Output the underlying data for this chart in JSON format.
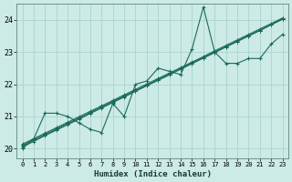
{
  "xlabel": "Humidex (Indice chaleur)",
  "bg_color": "#cceae6",
  "grid_color": "#aad4cf",
  "line_color": "#1a6b5a",
  "xlim": [
    -0.5,
    23.5
  ],
  "ylim": [
    19.7,
    24.5
  ],
  "yticks": [
    20,
    21,
    22,
    23,
    24
  ],
  "xticks": [
    0,
    1,
    2,
    3,
    4,
    5,
    6,
    7,
    8,
    9,
    10,
    11,
    12,
    13,
    14,
    15,
    16,
    17,
    18,
    19,
    20,
    21,
    22,
    23
  ],
  "zigzag": [
    20.0,
    20.3,
    21.1,
    21.1,
    21.0,
    20.8,
    20.6,
    20.5,
    21.4,
    21.0,
    22.0,
    22.1,
    22.5,
    22.4,
    22.3,
    23.1,
    24.4,
    23.0,
    22.65,
    22.65,
    22.8,
    22.8,
    23.25,
    23.55
  ],
  "linear_lines": [
    [
      20.05,
      20.22,
      20.4,
      20.57,
      20.74,
      20.91,
      21.09,
      21.26,
      21.43,
      21.6,
      21.78,
      21.95,
      22.12,
      22.29,
      22.47,
      22.64,
      22.81,
      22.98,
      23.16,
      23.33,
      23.5,
      23.67,
      23.85,
      24.02
    ],
    [
      20.08,
      20.25,
      20.42,
      20.59,
      20.76,
      20.93,
      21.1,
      21.27,
      21.45,
      21.62,
      21.79,
      21.96,
      22.13,
      22.3,
      22.47,
      22.65,
      22.82,
      22.99,
      23.16,
      23.33,
      23.5,
      23.67,
      23.85,
      24.02
    ],
    [
      20.11,
      20.28,
      20.45,
      20.62,
      20.79,
      20.96,
      21.13,
      21.3,
      21.47,
      21.64,
      21.81,
      21.98,
      22.16,
      22.33,
      22.5,
      22.67,
      22.84,
      23.01,
      23.18,
      23.35,
      23.52,
      23.69,
      23.86,
      24.04
    ],
    [
      20.14,
      20.31,
      20.48,
      20.65,
      20.82,
      20.99,
      21.16,
      21.33,
      21.5,
      21.67,
      21.84,
      22.01,
      22.18,
      22.35,
      22.52,
      22.69,
      22.86,
      23.04,
      23.21,
      23.38,
      23.55,
      23.72,
      23.89,
      24.06
    ]
  ]
}
